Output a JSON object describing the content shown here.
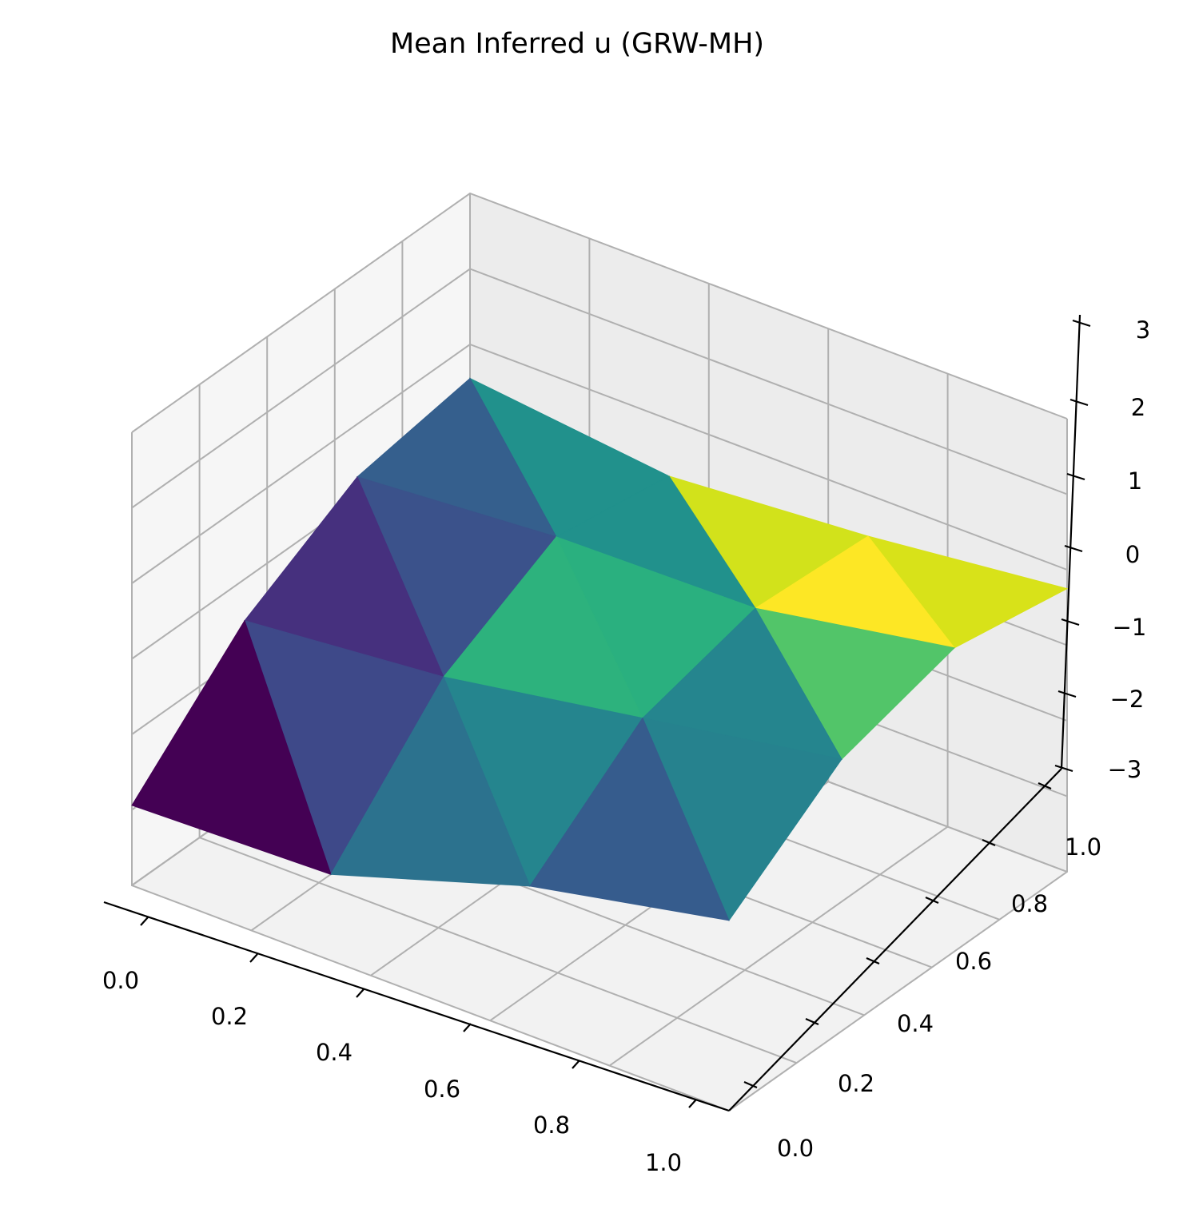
{
  "chart_data": {
    "type": "surface3d",
    "title": "Mean Inferred u (GRW-MH)",
    "xlabel": "",
    "ylabel": "",
    "zlabel": "",
    "xlim": [
      0,
      1
    ],
    "ylim": [
      0,
      1
    ],
    "zlim": [
      -3,
      3
    ],
    "x_ticks": [
      "0.0",
      "0.2",
      "0.4",
      "0.6",
      "0.8",
      "1.0"
    ],
    "y_ticks": [
      "0.0",
      "0.2",
      "0.4",
      "0.6",
      "0.8",
      "1.0"
    ],
    "z_ticks": [
      "−3",
      "−2",
      "−1",
      "0",
      "1",
      "2",
      "3"
    ],
    "grid": true,
    "colormap": "viridis",
    "x": [
      0,
      0.3333,
      0.6667,
      1.0
    ],
    "y": [
      0,
      0.3333,
      0.6667,
      1.0
    ],
    "z": [
      [
        -1.94,
        -1.86,
        -1.02,
        -0.48
      ],
      [
        -0.55,
        -0.3,
        0.15,
        0.6
      ],
      [
        0.3,
        0.5,
        0.55,
        1.02
      ],
      [
        0.55,
        0.25,
        0.45,
        0.75
      ]
    ],
    "triangle_colors": [
      [
        "#440154",
        "#3e4989",
        "#46307e",
        "#3b528b",
        "#355f8d",
        "#21918c"
      ],
      [
        "#2c728e",
        "#25858e",
        "#2db27d",
        "#2ab07f",
        "#21918c",
        "#d2e21b"
      ],
      [
        "#365c8d",
        "#26828e",
        "#25858e",
        "#52c569",
        "#fde725",
        "#d8e219"
      ]
    ]
  }
}
